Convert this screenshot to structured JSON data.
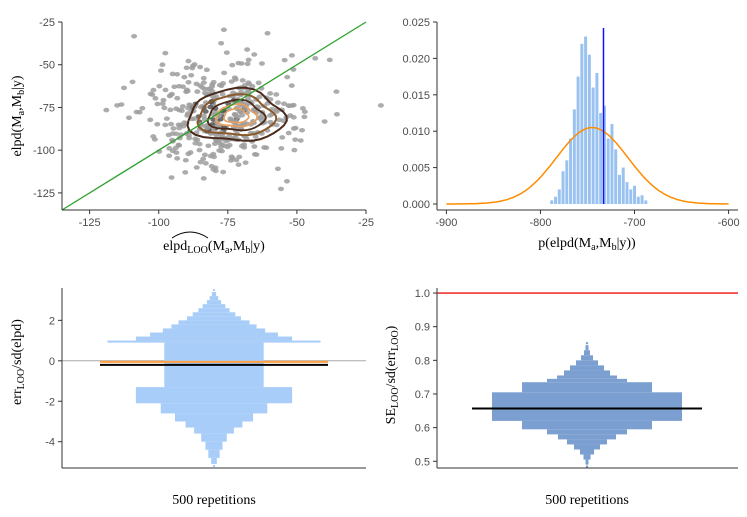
{
  "chart_data": [
    {
      "id": "scatter",
      "type": "scatter",
      "xlabel_main": "elpd",
      "xlabel_sub": "LOO",
      "xlabel_args": "(M",
      "xlabel_a": "a",
      "xlabel_mid": ",M",
      "xlabel_b": "b",
      "xlabel_end": "|y)",
      "ylabel": "elpd(M_a,M_b|y)",
      "xlim": [
        -135,
        -25
      ],
      "ylim": [
        -135,
        -25
      ],
      "xticks": [
        -125,
        -100,
        -75,
        -50,
        -25
      ],
      "yticks": [
        -125,
        -100,
        -75,
        -50,
        -25
      ],
      "diagonal": true,
      "colors": {
        "points": "#9e9e9e",
        "diag": "#2ca02c",
        "contour_dark": "#4a2a1a",
        "contour_mid": "#8b5a2b",
        "contour_light": "#e8a060"
      }
    },
    {
      "id": "hist_top",
      "type": "bar",
      "xlabel": "p(elpd(M_a,M_b|y))",
      "xlim": [
        -910,
        -590
      ],
      "ylim": [
        0,
        0.025
      ],
      "xticks": [
        -900,
        -800,
        -700,
        -600
      ],
      "yticks": [
        "0.000",
        "0.005",
        "0.010",
        "0.015",
        "0.020",
        "0.025"
      ],
      "bins_start": -790,
      "bin_width": 4,
      "values": [
        0.0005,
        0.001,
        0.002,
        0.0045,
        0.006,
        0.009,
        0.013,
        0.0175,
        0.022,
        0.023,
        0.0205,
        0.016,
        0.018,
        0.0125,
        0.0135,
        0.009,
        0.011,
        0.0075,
        0.004,
        0.005,
        0.003,
        0.002,
        0.0025,
        0.001,
        0.0012,
        0.0005
      ],
      "normal_mean": -745,
      "normal_sd": 38,
      "vline": -733,
      "colors": {
        "bars": "#99c2f0",
        "curve": "#ff8c00",
        "vline": "#1010ff"
      }
    },
    {
      "id": "violin_err",
      "type": "bar",
      "xlabel": "500 repetitions",
      "ylabel_main": "err",
      "ylabel_sub": "LOO",
      "ylabel_end": "/sd(elpd)",
      "ylim": [
        -5.3,
        3.6
      ],
      "yticks": [
        2,
        0,
        -2,
        -4
      ],
      "edges": [
        3.4,
        3.2,
        3.0,
        2.8,
        2.6,
        2.4,
        2.2,
        2.0,
        1.8,
        1.6,
        1.4,
        1.2,
        1.0,
        0.9,
        -1.3,
        -2.1,
        -2.6,
        -3.0,
        -3.3,
        -3.6,
        -4.0,
        -4.4,
        -4.8,
        -5.1
      ],
      "widths": [
        3,
        6,
        10,
        16,
        22,
        30,
        38,
        50,
        60,
        72,
        90,
        110,
        150,
        70,
        110,
        75,
        55,
        40,
        28,
        18,
        12,
        8,
        4
      ],
      "hline_ref": 0,
      "mean_orange": -0.05,
      "mean_black": -0.2,
      "colors": {
        "bars": "#a8cdf8",
        "orange": "#ff9f3f",
        "black": "#000000",
        "ref": "#aaaaaa"
      }
    },
    {
      "id": "violin_se",
      "type": "bar",
      "xlabel": "500 repetitions",
      "ylabel_main": "SE",
      "ylabel_sub": "LOO",
      "ylabel_mid": "/sd(err",
      "ylabel_sub2": "LOO",
      "ylabel_end": ")",
      "ylim": [
        0.48,
        1.015
      ],
      "yticks": [
        "1.0",
        "0.9",
        "0.8",
        "0.7",
        "0.6",
        "0.5"
      ],
      "edges": [
        0.845,
        0.83,
        0.815,
        0.8,
        0.785,
        0.77,
        0.755,
        0.745,
        0.735,
        0.705,
        0.62,
        0.595,
        0.58,
        0.565,
        0.55,
        0.535,
        0.52,
        0.505,
        0.49
      ],
      "widths": [
        3,
        6,
        12,
        22,
        34,
        46,
        60,
        80,
        130,
        190,
        130,
        80,
        58,
        40,
        26,
        14,
        7,
        3
      ],
      "hline_ref": 1.0,
      "mean_black": 0.657,
      "colors": {
        "bars": "#7c9fd1",
        "black": "#000000",
        "ref": "#ee1111"
      }
    }
  ]
}
